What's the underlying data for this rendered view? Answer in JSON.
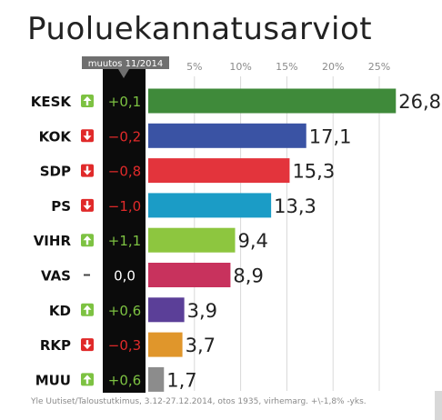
{
  "title": "Puoluekannatusarviot",
  "change_header": "muutos 11/2014",
  "footnote": "Yle Uutiset/Taloustutkimus, 3.12-27.12.2014, otos 1935, virhemarg. +\\-1,8% -yks.",
  "colors": {
    "up": "#7dc242",
    "down": "#e02a2a",
    "neutral": "#ffffff",
    "change_column": "#0b0b0b",
    "grid": "#d9d9d9"
  },
  "chart_data": {
    "type": "bar",
    "orientation": "horizontal",
    "title": "Puoluekannatusarviot",
    "xlim": [
      0,
      27
    ],
    "x_ticks": [
      "5%",
      "10%",
      "15%",
      "20%",
      "25%"
    ],
    "x_tick_values": [
      5,
      10,
      15,
      20,
      25
    ],
    "grid": true,
    "categories": [
      "KESK",
      "KOK",
      "SDP",
      "PS",
      "VIHR",
      "VAS",
      "KD",
      "RKP",
      "MUU"
    ],
    "values": [
      26.8,
      17.1,
      15.3,
      13.3,
      9.4,
      8.9,
      3.9,
      3.7,
      1.7
    ],
    "value_labels": [
      "26,8",
      "17,1",
      "15,3",
      "13,3",
      "9,4",
      "8,9",
      "3,9",
      "3,7",
      "1,7"
    ],
    "changes": [
      0.1,
      -0.2,
      -0.8,
      -1.0,
      1.1,
      0.0,
      0.6,
      -0.3,
      0.6
    ],
    "change_labels": [
      "+0,1",
      "−0,2",
      "−0,8",
      "−1,0",
      "+1,1",
      "0,0",
      "+0,6",
      "−0,3",
      "+0,6"
    ],
    "trend": [
      "up",
      "down",
      "down",
      "down",
      "up",
      "none",
      "up",
      "down",
      "up"
    ],
    "bar_colors": [
      "#3f8a3a",
      "#3a53a4",
      "#e3343c",
      "#1b9cc6",
      "#8dc63f",
      "#c8325d",
      "#5b3f98",
      "#e0962b",
      "#8c8c8c"
    ]
  }
}
